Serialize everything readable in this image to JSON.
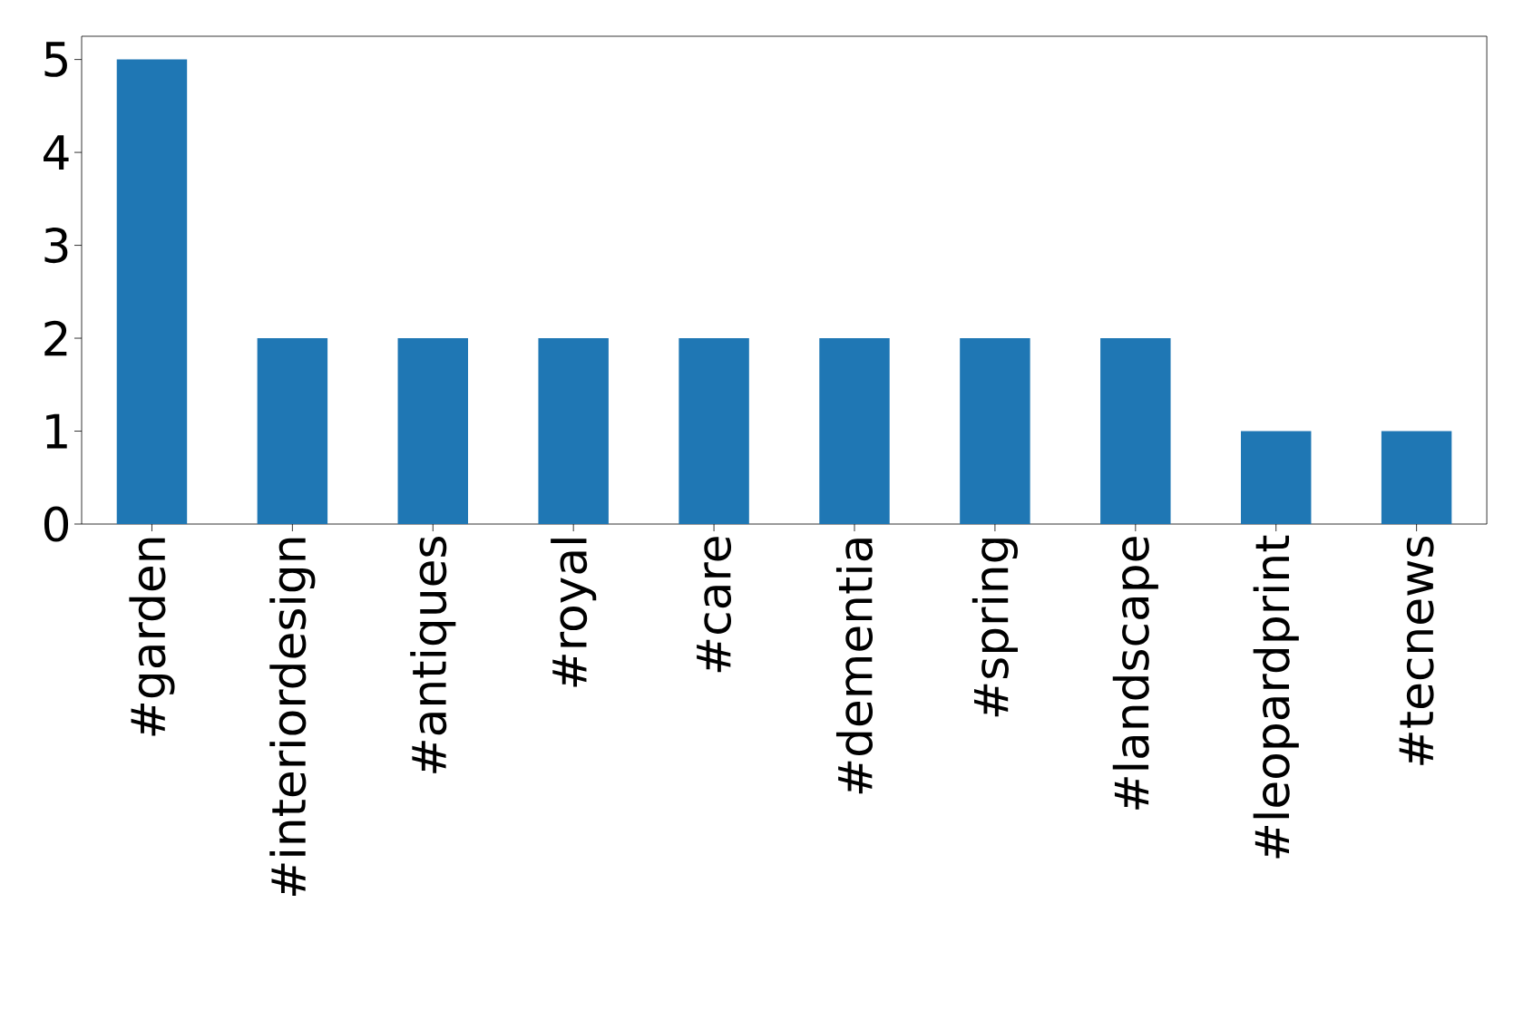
{
  "chart_data": {
    "type": "bar",
    "categories": [
      "#garden",
      "#interiordesign",
      "#antiques",
      "#royal",
      "#care",
      "#dementia",
      "#spring",
      "#landscape",
      "#leopardprint",
      "#tecnews"
    ],
    "values": [
      5,
      2,
      2,
      2,
      2,
      2,
      2,
      2,
      1,
      1
    ],
    "color": "#1f77b4",
    "ylim": [
      0,
      5.25
    ],
    "yticks": [
      0,
      1,
      2,
      3,
      4,
      5
    ],
    "grid": false
  }
}
